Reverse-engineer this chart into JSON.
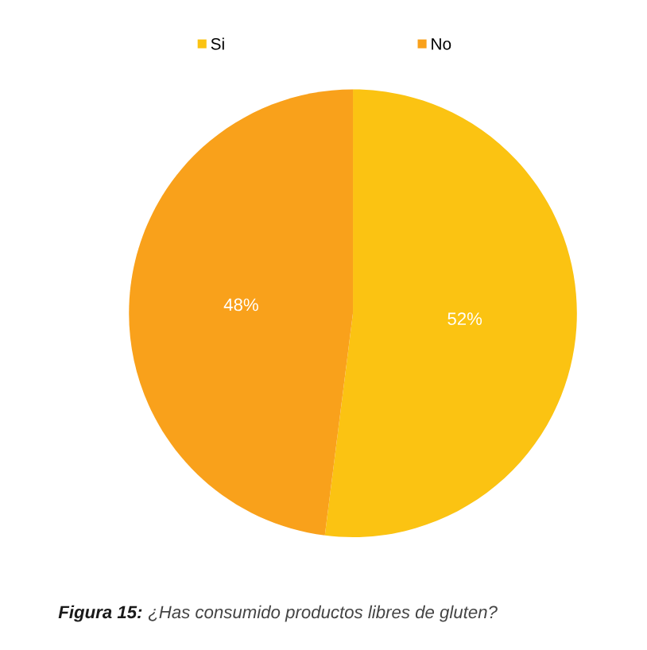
{
  "chart_data": {
    "type": "pie",
    "categories": [
      "Si",
      "No"
    ],
    "values": [
      52,
      48
    ],
    "colors": [
      "#fbc312",
      "#f9a11b"
    ],
    "value_labels": [
      "52%",
      "48%"
    ],
    "legend": "top",
    "annotations": [
      "Figura 15: ¿Has consumido productos libres de gluten?"
    ]
  }
}
